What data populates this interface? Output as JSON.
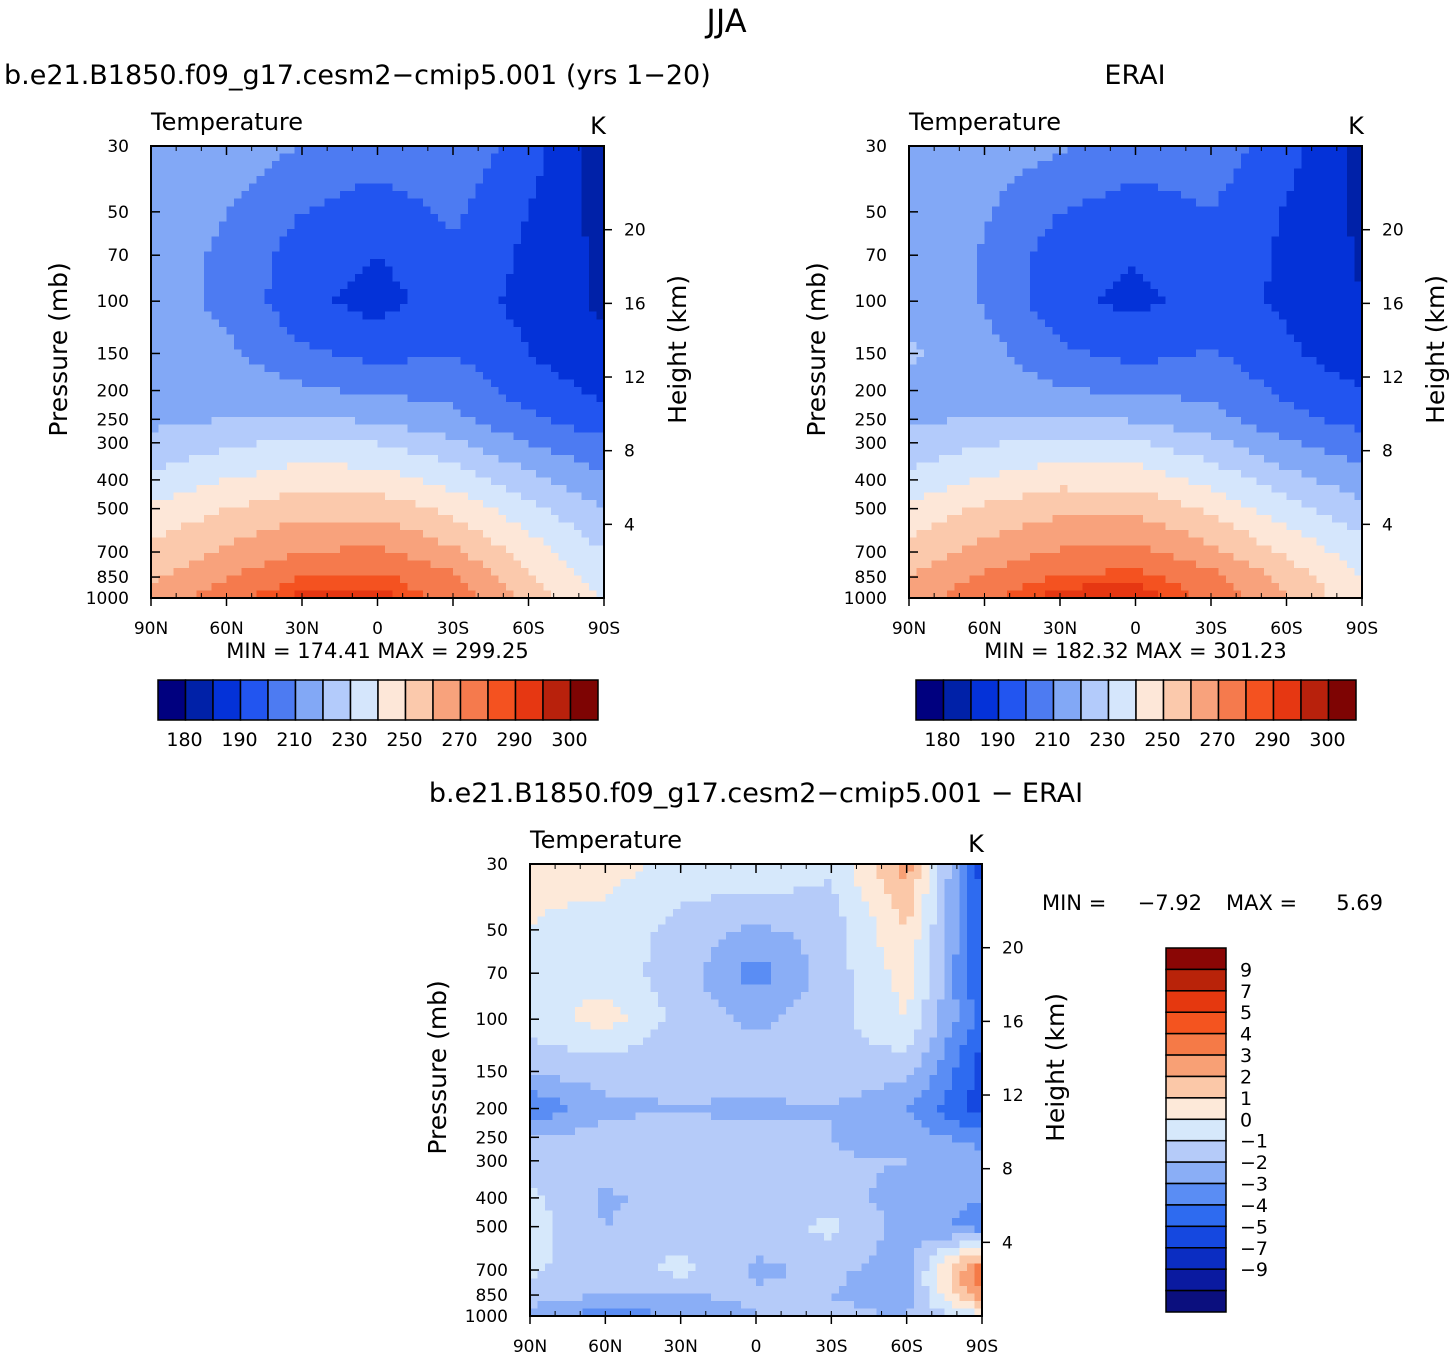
{
  "title": "JJA",
  "colors": {
    "abs_scale": [
      "#00007f",
      "#0021a8",
      "#0432d8",
      "#2255f0",
      "#4d7bf2",
      "#82a8f6",
      "#b3cbfb",
      "#d5e6fc",
      "#fde7d8",
      "#fbc9ac",
      "#f8a27c",
      "#f57a4d",
      "#f45220",
      "#e63712",
      "#b8210c",
      "#7e0403"
    ],
    "diff_scale": [
      "#0b0f7e",
      "#0a1aa0",
      "#0b2dc2",
      "#1548e0",
      "#2e6bf0",
      "#5a8df4",
      "#8aaef6",
      "#b5cbf9",
      "#d6e8fb",
      "#fde9d9",
      "#fbc8a8",
      "#f8a075",
      "#f57a47",
      "#f4541f",
      "#e5380f",
      "#b92309",
      "#8a0605"
    ]
  },
  "panels": [
    {
      "id": "model",
      "title": "b.e21.B1850.f09_g17.cesm2−cmip5.001 (yrs 1−20)",
      "corner_left": "Temperature",
      "corner_right": "K",
      "min_label": "MIN  =  174.41",
      "max_label": "MAX  =  299.25"
    },
    {
      "id": "obs",
      "title": "ERAI",
      "corner_left": "Temperature",
      "corner_right": "K",
      "min_label": "MIN  =  182.32",
      "max_label": "MAX  =  301.23"
    },
    {
      "id": "diff",
      "title": "b.e21.B1850.f09_g17.cesm2−cmip5.001  −  ERAI",
      "corner_left": "Temperature",
      "corner_right": "K",
      "min_label": "MIN  =",
      "min_value": "−7.92",
      "max_label": "MAX  =",
      "max_value": "5.69"
    }
  ],
  "axes": {
    "ylabel": "Pressure  (mb)",
    "y2label": "Height  (km)",
    "pressure_ticks": [
      "30",
      "50",
      "70",
      "100",
      "150",
      "200",
      "250",
      "300",
      "400",
      "500",
      "700",
      "850",
      "1000"
    ],
    "height_ticks": [
      "20",
      "16",
      "12",
      "8",
      "4"
    ],
    "lat_ticks": [
      "90N",
      "60N",
      "30N",
      "0",
      "30S",
      "60S",
      "90S"
    ]
  },
  "abs_colorbar_labels": [
    "180",
    "190",
    "210",
    "230",
    "250",
    "270",
    "290",
    "300"
  ],
  "diff_colorbar_labels": [
    "9",
    "7",
    "5",
    "4",
    "3",
    "2",
    "1",
    "0",
    "−1",
    "−2",
    "−3",
    "−4",
    "−5",
    "−7",
    "−9"
  ],
  "chart_data": [
    {
      "type": "heatmap",
      "title": "b.e21.B1850.f09_g17.cesm2−cmip5.001 (yrs 1−20)",
      "subtitle": "Temperature",
      "units": "K",
      "ylabel": "Pressure  (mb)",
      "y2label": "Height  (km)",
      "xlim": [
        90,
        -90
      ],
      "ylim_mb": [
        1000,
        30
      ],
      "y_scale": "log",
      "x": [
        90,
        60,
        30,
        0,
        -30,
        -60,
        -90
      ],
      "y": [
        30,
        50,
        70,
        100,
        150,
        200,
        250,
        300,
        400,
        500,
        700,
        850,
        1000
      ],
      "z": [
        [
          228,
          226,
          220,
          215,
          218,
          205,
          182
        ],
        [
          226,
          220,
          210,
          205,
          212,
          200,
          186
        ],
        [
          225,
          218,
          205,
          200,
          208,
          198,
          188
        ],
        [
          224,
          218,
          203,
          196,
          205,
          197,
          188
        ],
        [
          224,
          222,
          212,
          207,
          210,
          200,
          192
        ],
        [
          225,
          226,
          222,
          218,
          218,
          205,
          198
        ],
        [
          228,
          230,
          232,
          228,
          222,
          212,
          204
        ],
        [
          232,
          238,
          242,
          240,
          232,
          220,
          212
        ],
        [
          242,
          250,
          256,
          255,
          246,
          233,
          222
        ],
        [
          252,
          260,
          266,
          266,
          257,
          243,
          230
        ],
        [
          262,
          272,
          280,
          282,
          272,
          256,
          240
        ],
        [
          268,
          280,
          290,
          292,
          282,
          262,
          245
        ],
        [
          272,
          286,
          298,
          298,
          286,
          266,
          248
        ]
      ],
      "min": 174.41,
      "max": 299.25,
      "levels": [
        180,
        190,
        200,
        210,
        220,
        230,
        240,
        250,
        260,
        270,
        280,
        290,
        295,
        300
      ]
    },
    {
      "type": "heatmap",
      "title": "ERAI",
      "subtitle": "Temperature",
      "units": "K",
      "ylabel": "Pressure  (mb)",
      "y2label": "Height  (km)",
      "xlim": [
        90,
        -90
      ],
      "ylim_mb": [
        1000,
        30
      ],
      "y_scale": "log",
      "x": [
        90,
        60,
        30,
        0,
        -30,
        -60,
        -90
      ],
      "y": [
        30,
        50,
        70,
        100,
        150,
        200,
        250,
        300,
        400,
        500,
        700,
        850,
        1000
      ],
      "z": [
        [
          228,
          226,
          221,
          216,
          216,
          204,
          186
        ],
        [
          227,
          221,
          210,
          205,
          210,
          199,
          188
        ],
        [
          226,
          219,
          205,
          201,
          207,
          198,
          189
        ],
        [
          226,
          219,
          203,
          197,
          205,
          198,
          190
        ],
        [
          232,
          224,
          212,
          207,
          211,
          202,
          194
        ],
        [
          226,
          226,
          221,
          218,
          218,
          208,
          200
        ],
        [
          228,
          231,
          232,
          229,
          223,
          213,
          206
        ],
        [
          233,
          239,
          243,
          241,
          233,
          221,
          214
        ],
        [
          243,
          251,
          257,
          256,
          247,
          234,
          224
        ],
        [
          253,
          262,
          267,
          267,
          258,
          244,
          232
        ],
        [
          263,
          274,
          281,
          283,
          273,
          258,
          245
        ],
        [
          270,
          282,
          291,
          293,
          284,
          266,
          250
        ],
        [
          274,
          288,
          299,
          299,
          288,
          270,
          252
        ]
      ],
      "min": 182.32,
      "max": 301.23,
      "levels": [
        180,
        190,
        200,
        210,
        220,
        230,
        240,
        250,
        260,
        270,
        280,
        290,
        295,
        300
      ]
    },
    {
      "type": "heatmap",
      "title": "b.e21.B1850.f09_g17.cesm2−cmip5.001  −  ERAI",
      "subtitle": "Temperature",
      "units": "K",
      "ylabel": "Pressure  (mb)",
      "y2label": "Height  (km)",
      "xlim": [
        90,
        -90
      ],
      "ylim_mb": [
        1000,
        30
      ],
      "y_scale": "log",
      "x": [
        90,
        60,
        30,
        0,
        -30,
        -60,
        -90
      ],
      "y": [
        30,
        50,
        70,
        100,
        150,
        200,
        250,
        300,
        400,
        500,
        700,
        850,
        1000
      ],
      "z": [
        [
          1.2,
          1.5,
          0.5,
          1.0,
          0.2,
          3.5,
          -4.5
        ],
        [
          1.0,
          0.6,
          -0.3,
          -1.2,
          -0.6,
          2.0,
          -4.0
        ],
        [
          0.8,
          0.5,
          -0.5,
          -2.5,
          -0.5,
          1.5,
          -4.0
        ],
        [
          0.4,
          1.5,
          -0.4,
          -1.2,
          -0.4,
          1.0,
          -3.5
        ],
        [
          -0.8,
          -0.6,
          -0.8,
          -0.5,
          -0.4,
          -0.6,
          -4.5
        ],
        [
          -3.0,
          -1.2,
          -1.0,
          -1.2,
          -1.0,
          -2.0,
          -4.5
        ],
        [
          -1.0,
          -0.6,
          -0.8,
          -0.8,
          -1.0,
          -1.5,
          -2.5
        ],
        [
          -0.6,
          -0.5,
          -0.6,
          -0.8,
          -0.9,
          -1.0,
          -1.5
        ],
        [
          0.2,
          -1.2,
          -0.5,
          -0.5,
          -0.8,
          -1.2,
          -2.0
        ],
        [
          0.5,
          -1.0,
          -0.5,
          -0.6,
          0.3,
          -1.5,
          -2.5
        ],
        [
          0.3,
          -1.0,
          0.4,
          -1.2,
          -0.8,
          -1.5,
          5.0
        ],
        [
          -0.5,
          -1.0,
          -1.0,
          -0.8,
          -1.0,
          -1.5,
          4.0
        ],
        [
          -1.5,
          -2.5,
          -2.0,
          -1.0,
          -0.8,
          -1.0,
          0.5
        ]
      ],
      "min": -7.92,
      "max": 5.69,
      "levels": [
        -9,
        -7,
        -5,
        -4,
        -3,
        -2,
        -1,
        0,
        1,
        2,
        3,
        4,
        5,
        7,
        9
      ]
    }
  ]
}
